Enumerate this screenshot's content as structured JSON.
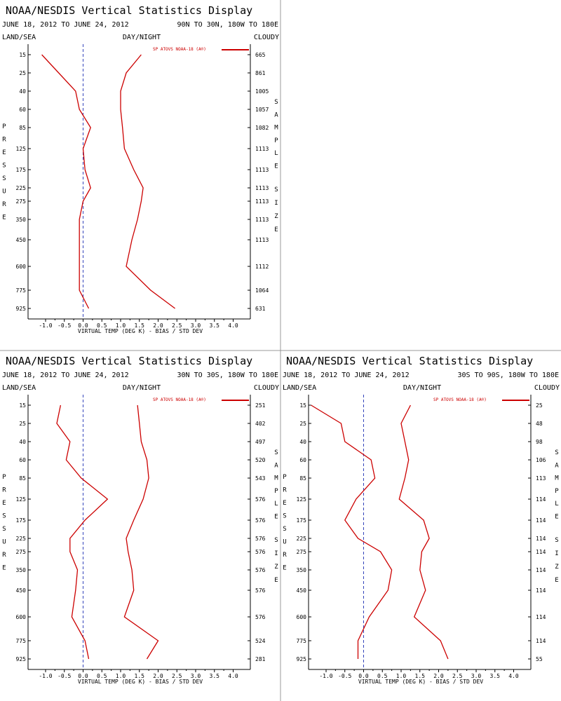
{
  "header_title": "NOAA/NESDIS Vertical Statistics Display",
  "date_range": "JUNE 18, 2012 TO JUNE 24, 2012",
  "label_land_sea": "LAND/SEA",
  "label_day_night": "DAY/NIGHT",
  "label_cloudy": "CLOUDY",
  "legend_text": "SP ATOVS NOAA-18 (A®)",
  "vertical_left": [
    "P",
    "R",
    "E",
    "S",
    "S",
    "U",
    "R",
    "E"
  ],
  "vertical_right_1": [
    "S",
    "A",
    "M",
    "P",
    "L",
    "E"
  ],
  "vertical_right_2": [
    "S",
    "I",
    "Z",
    "E"
  ],
  "x_ticks": [
    "-1.0",
    "-0.5",
    "0.0",
    "0.5",
    "1.0",
    "1.5",
    "2.0",
    "2.5",
    "3.0",
    "3.5",
    "4.0"
  ],
  "colors": {
    "series": "#cc0000",
    "zero_line": "#3344bb",
    "axis": "#000000",
    "divider": "#999999"
  },
  "chart_data": [
    {
      "type": "line",
      "region": "90N TO 30N, 180W TO 180E",
      "xlabel": "VIRTUAL TEMP (DEG K) - BIAS / STD DEV",
      "xlim": [
        -1.25,
        4.25
      ],
      "pressure_levels": [
        "15",
        "25",
        "40",
        "60",
        "85",
        "125",
        "175",
        "225",
        "275",
        "350",
        "450",
        "600",
        "775",
        "925"
      ],
      "sample_size": [
        "665",
        "861",
        "1005",
        "1057",
        "1082",
        "1113",
        "1113",
        "1113",
        "1113",
        "1113",
        "1113",
        "1112",
        "1064",
        "631"
      ],
      "series": [
        {
          "values": [
            -1.1,
            -0.65,
            -0.2,
            -0.1,
            0.2,
            0.0,
            0.05,
            0.2,
            0.0,
            -0.1,
            -0.1,
            -0.1,
            -0.1,
            0.15
          ]
        },
        {
          "values": [
            1.55,
            1.15,
            1.0,
            1.0,
            1.05,
            1.1,
            1.35,
            1.6,
            1.55,
            1.45,
            1.3,
            1.15,
            1.8,
            2.45
          ]
        }
      ]
    },
    {
      "type": "line",
      "region": "30N TO 30S, 180W TO 180E",
      "xlabel": "VIRTUAL TEMP (DEG K) - BIAS / STD DEV",
      "xlim": [
        -1.25,
        4.25
      ],
      "pressure_levels": [
        "15",
        "25",
        "40",
        "60",
        "85",
        "125",
        "175",
        "225",
        "275",
        "350",
        "450",
        "600",
        "775",
        "925"
      ],
      "sample_size": [
        "251",
        "402",
        "497",
        "520",
        "543",
        "576",
        "576",
        "576",
        "576",
        "576",
        "576",
        "576",
        "524",
        "281"
      ],
      "series": [
        {
          "values": [
            -0.6,
            -0.7,
            -0.35,
            -0.45,
            -0.05,
            0.65,
            0.05,
            -0.35,
            -0.35,
            -0.15,
            -0.2,
            -0.3,
            0.05,
            0.15
          ]
        },
        {
          "values": [
            1.45,
            1.5,
            1.55,
            1.7,
            1.75,
            1.6,
            1.35,
            1.15,
            1.2,
            1.3,
            1.35,
            1.1,
            2.0,
            1.7
          ]
        }
      ]
    },
    {
      "type": "line",
      "region": "30S TO 90S, 180W TO 180E",
      "xlabel": "VIRTUAL TEMP (DEG K) - BIAS / STD DEV",
      "xlim": [
        -1.25,
        4.25
      ],
      "pressure_levels": [
        "15",
        "25",
        "40",
        "60",
        "85",
        "125",
        "175",
        "225",
        "275",
        "350",
        "450",
        "600",
        "775",
        "925"
      ],
      "sample_size": [
        "25",
        "48",
        "98",
        "106",
        "113",
        "114",
        "114",
        "114",
        "114",
        "114",
        "114",
        "114",
        "114",
        "55"
      ],
      "series": [
        {
          "values": [
            -1.4,
            -0.6,
            -0.5,
            0.2,
            0.3,
            -0.2,
            -0.5,
            -0.15,
            0.45,
            0.75,
            0.65,
            0.15,
            -0.15,
            -0.15
          ]
        },
        {
          "values": [
            1.25,
            1.0,
            1.1,
            1.2,
            1.1,
            0.95,
            1.6,
            1.75,
            1.55,
            1.5,
            1.65,
            1.35,
            2.05,
            2.25
          ]
        }
      ]
    }
  ]
}
